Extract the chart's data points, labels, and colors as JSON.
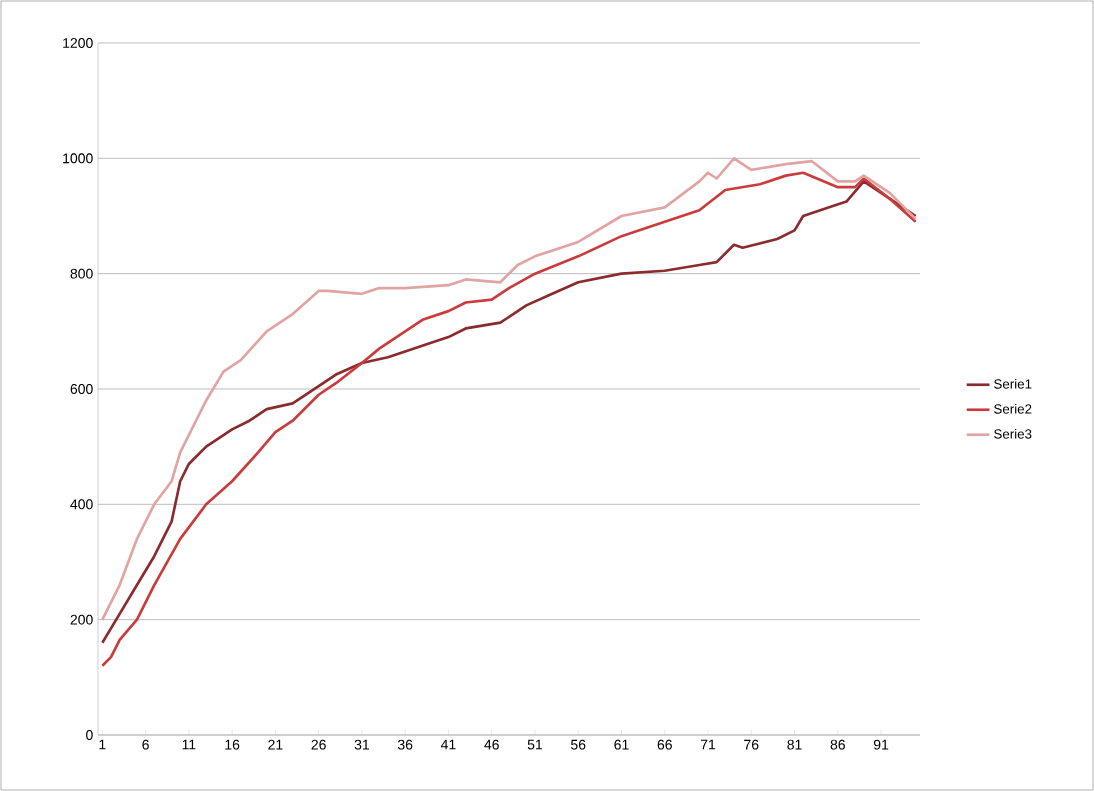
{
  "chart_data": {
    "type": "line",
    "xlim": [
      0.5,
      95.5
    ],
    "xticks": [
      1,
      6,
      11,
      16,
      21,
      26,
      31,
      36,
      41,
      46,
      51,
      56,
      61,
      66,
      71,
      76,
      81,
      86,
      91
    ],
    "ylim": [
      0,
      1200
    ],
    "yticks": [
      0,
      200,
      400,
      600,
      800,
      1000,
      1200
    ],
    "grid": "y",
    "legend": "right",
    "marker": "none",
    "series": [
      {
        "name": "Serie1",
        "color": "#8b2b2e",
        "x": [
          1,
          3,
          5,
          7,
          9,
          10,
          11,
          13,
          16,
          18,
          20,
          23,
          26,
          28,
          31,
          34,
          36,
          39,
          41,
          43,
          47,
          50,
          53,
          56,
          61,
          66,
          70,
          72,
          74,
          75,
          79,
          81,
          82,
          85,
          87,
          89,
          92,
          95
        ],
        "values": [
          160,
          210,
          260,
          310,
          370,
          440,
          470,
          500,
          530,
          545,
          565,
          575,
          605,
          625,
          645,
          655,
          665,
          680,
          690,
          705,
          715,
          745,
          765,
          785,
          800,
          805,
          815,
          820,
          850,
          845,
          860,
          875,
          900,
          915,
          925,
          960,
          930,
          900
        ]
      },
      {
        "name": "Serie2",
        "color": "#cc3b3b",
        "x": [
          1,
          2,
          3,
          5,
          7,
          10,
          13,
          16,
          19,
          21,
          23,
          26,
          28,
          31,
          33,
          36,
          38,
          41,
          43,
          46,
          48,
          51,
          56,
          61,
          66,
          70,
          73,
          77,
          80,
          82,
          86,
          88,
          89,
          92,
          95
        ],
        "values": [
          120,
          135,
          165,
          200,
          260,
          340,
          400,
          440,
          490,
          525,
          545,
          590,
          610,
          645,
          670,
          700,
          720,
          735,
          750,
          755,
          775,
          800,
          830,
          865,
          890,
          910,
          945,
          955,
          970,
          975,
          950,
          950,
          965,
          930,
          890
        ]
      },
      {
        "name": "Serie3",
        "color": "#e2a3a3",
        "x": [
          1,
          3,
          5,
          7,
          9,
          10,
          13,
          15,
          17,
          20,
          23,
          26,
          27,
          31,
          33,
          36,
          41,
          43,
          47,
          49,
          51,
          56,
          61,
          66,
          70,
          71,
          72,
          74,
          76,
          80,
          83,
          86,
          88,
          89,
          92,
          95
        ],
        "values": [
          200,
          260,
          340,
          400,
          440,
          490,
          580,
          630,
          650,
          700,
          730,
          770,
          770,
          765,
          775,
          775,
          780,
          790,
          785,
          815,
          830,
          855,
          900,
          915,
          960,
          975,
          965,
          1000,
          980,
          990,
          995,
          960,
          960,
          970,
          940,
          895
        ]
      }
    ]
  }
}
